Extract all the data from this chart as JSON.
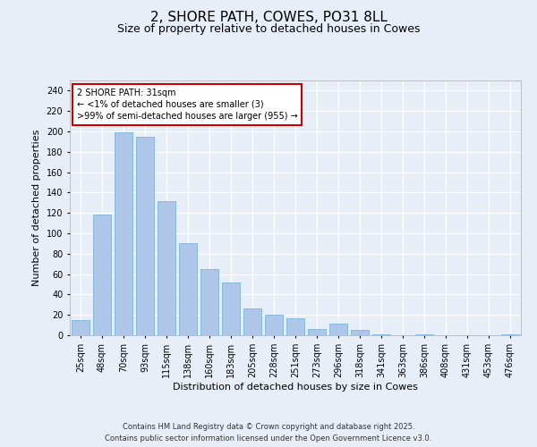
{
  "title": "2, SHORE PATH, COWES, PO31 8LL",
  "subtitle": "Size of property relative to detached houses in Cowes",
  "xlabel": "Distribution of detached houses by size in Cowes",
  "ylabel": "Number of detached properties",
  "categories": [
    "25sqm",
    "48sqm",
    "70sqm",
    "93sqm",
    "115sqm",
    "138sqm",
    "160sqm",
    "183sqm",
    "205sqm",
    "228sqm",
    "251sqm",
    "273sqm",
    "296sqm",
    "318sqm",
    "341sqm",
    "363sqm",
    "386sqm",
    "408sqm",
    "431sqm",
    "453sqm",
    "476sqm"
  ],
  "values": [
    15,
    118,
    199,
    195,
    132,
    90,
    65,
    52,
    26,
    20,
    17,
    6,
    11,
    5,
    1,
    0,
    1,
    0,
    0,
    0,
    1
  ],
  "bar_color": "#aec6e8",
  "bar_edge_color": "#6aaed6",
  "highlight_bar_color": "#cc0000",
  "ylim": [
    0,
    250
  ],
  "yticks": [
    0,
    20,
    40,
    60,
    80,
    100,
    120,
    140,
    160,
    180,
    200,
    220,
    240
  ],
  "annotation_title": "2 SHORE PATH: 31sqm",
  "annotation_line1": "← <1% of detached houses are smaller (3)",
  "annotation_line2": ">99% of semi-detached houses are larger (955) →",
  "annotation_box_color": "#ffffff",
  "annotation_box_edge_color": "#cc0000",
  "bg_color": "#e8eef7",
  "plot_bg_color": "#e8eef7",
  "grid_color": "#ffffff",
  "footer_line1": "Contains HM Land Registry data © Crown copyright and database right 2025.",
  "footer_line2": "Contains public sector information licensed under the Open Government Licence v3.0.",
  "title_fontsize": 11,
  "subtitle_fontsize": 9,
  "axis_label_fontsize": 8,
  "tick_fontsize": 7,
  "annotation_fontsize": 7,
  "footer_fontsize": 6
}
